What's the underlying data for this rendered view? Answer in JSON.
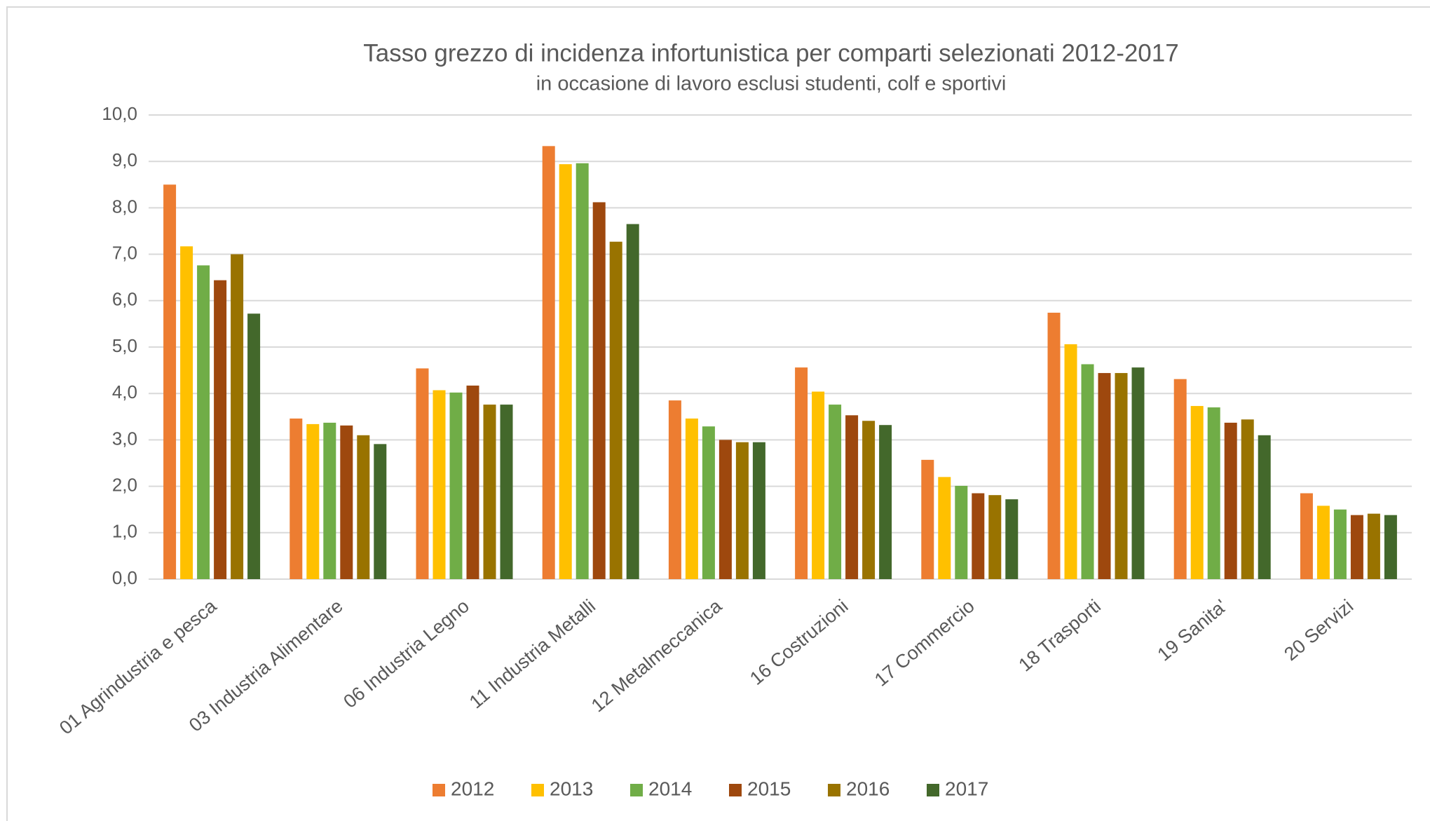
{
  "chart_data": {
    "type": "bar",
    "title": "Tasso grezzo di incidenza infortunistica per comparti selezionati 2012-2017",
    "subtitle": "in occasione di lavoro esclusi studenti, colf e sportivi",
    "categories": [
      "01 Agrindustria e pesca",
      "03 Industria Alimentare",
      "06 Industria Legno",
      "11 Industria Metalli",
      "12 Metalmeccanica",
      "16 Costruzioni",
      "17 Commercio",
      "18 Trasporti",
      "19 Sanita'",
      "20 Servizi"
    ],
    "series": [
      {
        "name": "2012",
        "color": "#ed7d31",
        "values": [
          8.5,
          3.46,
          4.54,
          9.33,
          3.85,
          4.56,
          2.57,
          5.74,
          4.31,
          1.85
        ]
      },
      {
        "name": "2013",
        "color": "#ffc000",
        "values": [
          7.17,
          3.34,
          4.07,
          8.94,
          3.46,
          4.04,
          2.2,
          5.06,
          3.73,
          1.58
        ]
      },
      {
        "name": "2014",
        "color": "#70ad47",
        "values": [
          6.76,
          3.37,
          4.02,
          8.96,
          3.29,
          3.76,
          2.01,
          4.63,
          3.7,
          1.5
        ]
      },
      {
        "name": "2015",
        "color": "#9e480e",
        "values": [
          6.44,
          3.31,
          4.17,
          8.12,
          3.0,
          3.53,
          1.85,
          4.44,
          3.37,
          1.38
        ]
      },
      {
        "name": "2016",
        "color": "#997300",
        "values": [
          7.0,
          3.1,
          3.76,
          7.27,
          2.95,
          3.41,
          1.81,
          4.44,
          3.44,
          1.41
        ]
      },
      {
        "name": "2017",
        "color": "#43682b",
        "values": [
          5.72,
          2.91,
          3.76,
          7.65,
          2.95,
          3.32,
          1.72,
          4.56,
          3.1,
          1.38
        ]
      }
    ],
    "ylim": [
      0,
      10
    ],
    "yticks": [
      {
        "value": 0,
        "label": "0,0"
      },
      {
        "value": 1,
        "label": "1,0"
      },
      {
        "value": 2,
        "label": "2,0"
      },
      {
        "value": 3,
        "label": "3,0"
      },
      {
        "value": 4,
        "label": "4,0"
      },
      {
        "value": 5,
        "label": "5,0"
      },
      {
        "value": 6,
        "label": "6,0"
      },
      {
        "value": 7,
        "label": "7,0"
      },
      {
        "value": 8,
        "label": "8,0"
      },
      {
        "value": 9,
        "label": "9,0"
      },
      {
        "value": 10,
        "label": "10,0"
      }
    ],
    "grid": true,
    "legend": "bottom"
  }
}
